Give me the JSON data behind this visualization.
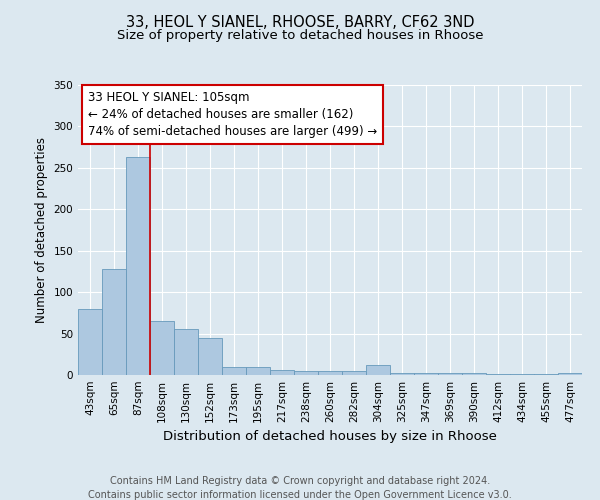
{
  "title1": "33, HEOL Y SIANEL, RHOOSE, BARRY, CF62 3ND",
  "title2": "Size of property relative to detached houses in Rhoose",
  "xlabel": "Distribution of detached houses by size in Rhoose",
  "ylabel": "Number of detached properties",
  "categories": [
    "43sqm",
    "65sqm",
    "87sqm",
    "108sqm",
    "130sqm",
    "152sqm",
    "173sqm",
    "195sqm",
    "217sqm",
    "238sqm",
    "260sqm",
    "282sqm",
    "304sqm",
    "325sqm",
    "347sqm",
    "369sqm",
    "390sqm",
    "412sqm",
    "434sqm",
    "455sqm",
    "477sqm"
  ],
  "values": [
    80,
    128,
    263,
    65,
    55,
    45,
    10,
    10,
    6,
    5,
    5,
    5,
    12,
    3,
    3,
    3,
    2,
    1,
    1,
    1,
    3
  ],
  "bar_color": "#adc8e0",
  "bar_edge_color": "#6699bb",
  "vline_x_index": 3,
  "vline_color": "#cc0000",
  "annotation_text": "33 HEOL Y SIANEL: 105sqm\n← 24% of detached houses are smaller (162)\n74% of semi-detached houses are larger (499) →",
  "annotation_box_color": "#ffffff",
  "annotation_box_edge_color": "#cc0000",
  "ylim": [
    0,
    350
  ],
  "yticks": [
    0,
    50,
    100,
    150,
    200,
    250,
    300,
    350
  ],
  "background_color": "#dce8f0",
  "plot_bg_color": "#dce8f0",
  "grid_color": "#ffffff",
  "footer_text": "Contains HM Land Registry data © Crown copyright and database right 2024.\nContains public sector information licensed under the Open Government Licence v3.0.",
  "title1_fontsize": 10.5,
  "title2_fontsize": 9.5,
  "xlabel_fontsize": 9.5,
  "ylabel_fontsize": 8.5,
  "tick_fontsize": 7.5,
  "annotation_fontsize": 8.5,
  "footer_fontsize": 7.0
}
